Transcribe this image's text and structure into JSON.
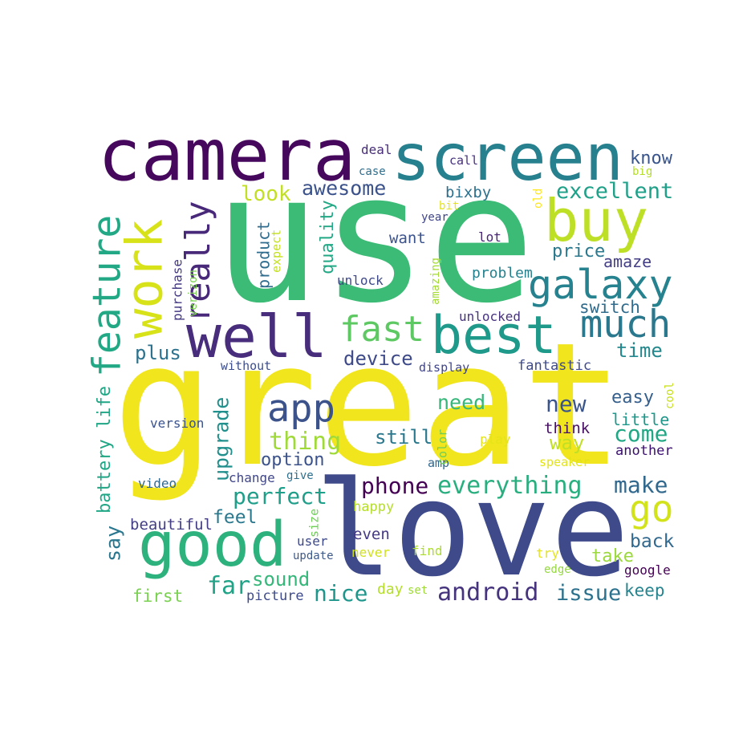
{
  "words": [
    "great",
    "use",
    "love",
    "camera",
    "screen",
    "buy",
    "galaxy",
    "much",
    "best",
    "fast",
    "well",
    "work",
    "feature",
    "really",
    "good",
    "app",
    "thing",
    "option",
    "upgrade",
    "perfect",
    "feel",
    "far",
    "sound",
    "picture",
    "nice",
    "phone",
    "everything",
    "go",
    "make",
    "android",
    "issue",
    "keep",
    "day",
    "set",
    "never",
    "find",
    "even",
    "happy",
    "user",
    "update",
    "size",
    "give",
    "change",
    "amp",
    "color",
    "still",
    "need",
    "new",
    "easy",
    "little",
    "cool",
    "think",
    "come",
    "another",
    "way",
    "play",
    "speaker",
    "say",
    "battery life",
    "version",
    "video",
    "beautiful",
    "first",
    "without",
    "display",
    "fantastic",
    "device",
    "plus",
    "time",
    "switch",
    "unlocked",
    "amaze",
    "price",
    "problem",
    "lot",
    "want",
    "unlock",
    "amazing",
    "quality",
    "product",
    "expect",
    "purchase",
    "verizon",
    "look",
    "awesome",
    "bixby",
    "bit",
    "year",
    "excellent",
    "know",
    "big",
    "old",
    "deal",
    "case",
    "call",
    "back",
    "take",
    "try",
    "edge",
    "google"
  ]
}
